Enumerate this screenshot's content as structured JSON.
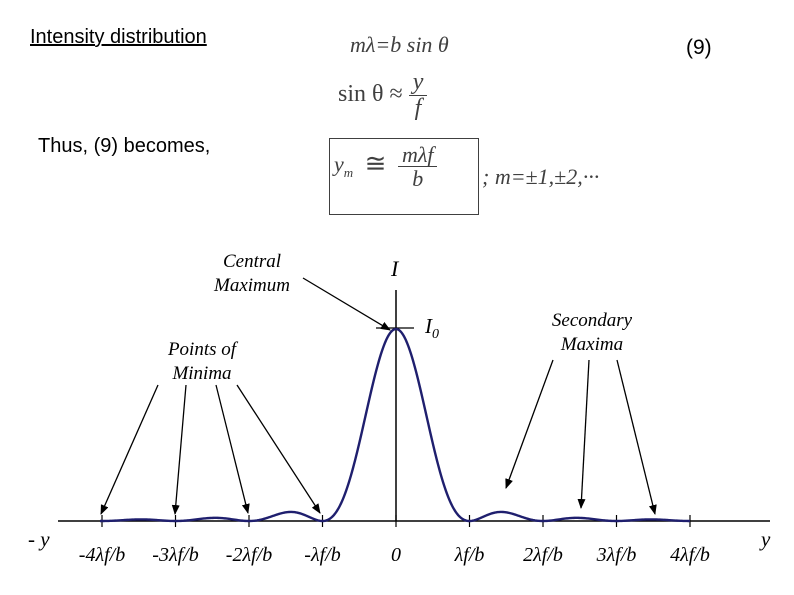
{
  "title": "Intensity distribution",
  "equation_number": "(9)",
  "eq1": "mλ=b sin θ",
  "eq2": {
    "lhs": "sin θ ≈",
    "num": "y",
    "den": "f"
  },
  "thus_text": "Thus, (9) becomes,",
  "boxed_eq": {
    "lhs": "y",
    "sub": "m",
    "approx": "≅",
    "num": "mλf",
    "den": "b"
  },
  "m_values": ";    m=±1,±2,···",
  "diagram": {
    "intensity_label": "I",
    "peak_label": "I",
    "peak_sub": "0",
    "annotations": {
      "central_maximum": [
        "Central",
        "Maximum"
      ],
      "points_of_minima": [
        "Points of",
        "Minima"
      ],
      "secondary_maxima": [
        "Secondary",
        "Maxima"
      ]
    },
    "axis_neg_label": "- y",
    "axis_pos_label": "y",
    "ticks": [
      "-4λf/b",
      "-3λf/b",
      "-2λf/b",
      "-λf/b",
      "0",
      "λf/b",
      "2λf/b",
      "3λf/b",
      "4λf/b"
    ],
    "curve_color": "#1f1f6e"
  }
}
